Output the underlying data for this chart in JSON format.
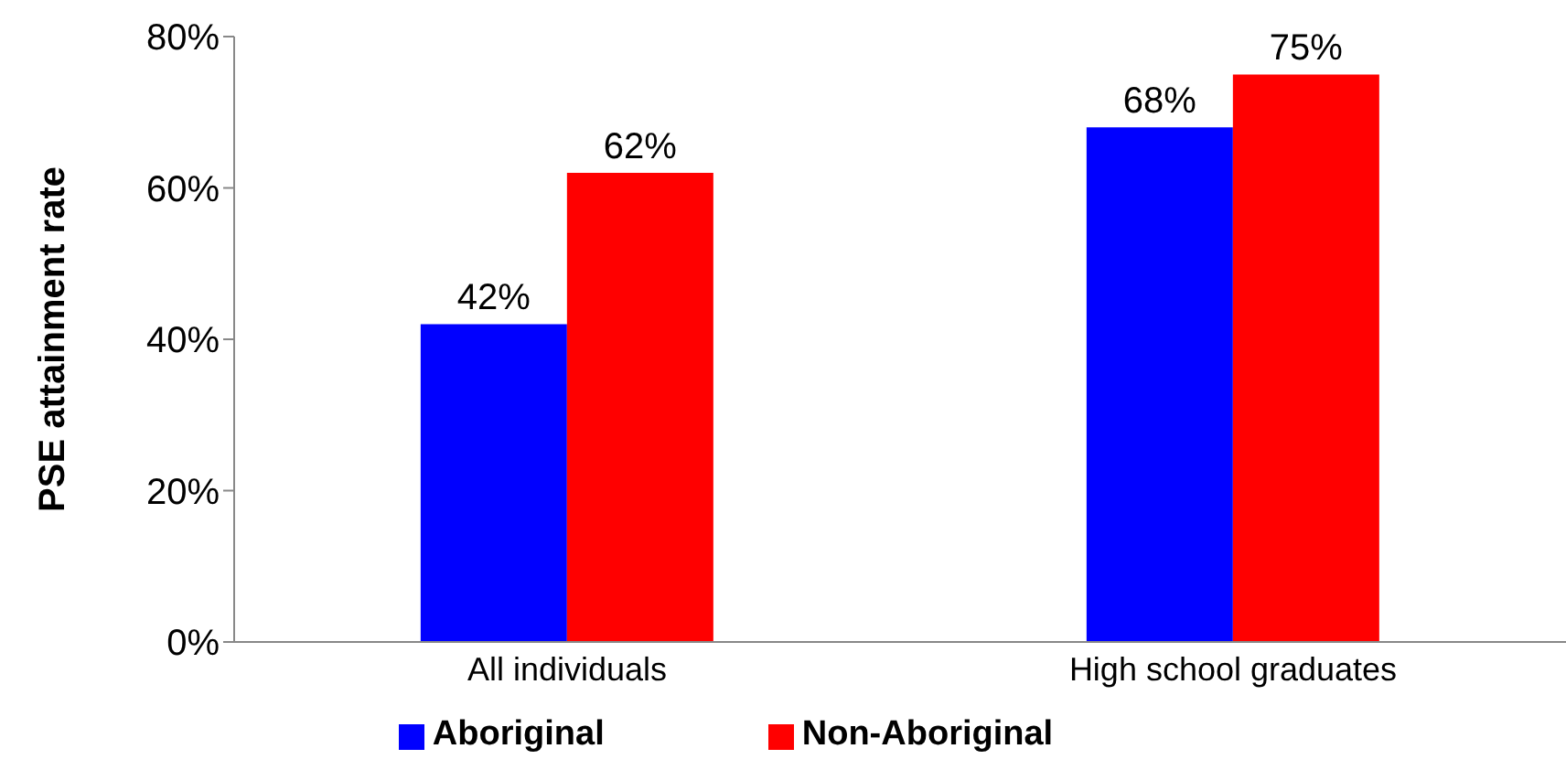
{
  "chart_data": {
    "type": "bar",
    "ylabel": "PSE attainment rate",
    "categories": [
      "All individuals",
      "High school graduates"
    ],
    "series": [
      {
        "name": "Aboriginal",
        "color": "#0000ff",
        "values": [
          42,
          68
        ],
        "value_labels": [
          "42%",
          "68%"
        ]
      },
      {
        "name": "Non-Aboriginal",
        "color": "#ff0000",
        "values": [
          62,
          75
        ],
        "value_labels": [
          "62%",
          "75%"
        ]
      }
    ],
    "ylim": [
      0,
      80
    ],
    "yticks": [
      {
        "value": 0,
        "label": "0%"
      },
      {
        "value": 20,
        "label": "20%"
      },
      {
        "value": 40,
        "label": "40%"
      },
      {
        "value": 60,
        "label": "60%"
      },
      {
        "value": 80,
        "label": "80%"
      }
    ],
    "grid": false,
    "legend": "bottom"
  }
}
